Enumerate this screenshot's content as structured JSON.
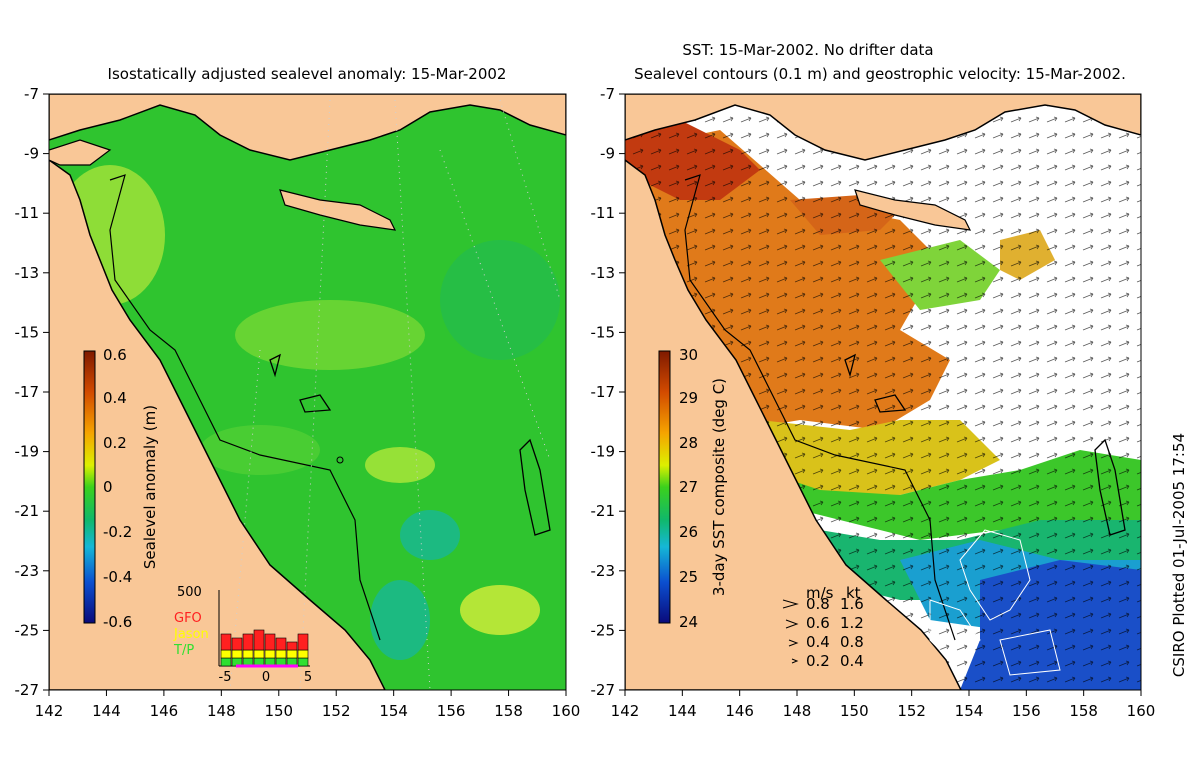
{
  "figure": {
    "credit": "CSIRO Plotted 01-Jul-2005 17:54",
    "colors": {
      "land": "#f9c797",
      "coast": "#000000",
      "background": "#ffffff"
    }
  },
  "left_map": {
    "title": "Isostatically adjusted sealevel anomaly: 15-Mar-2002",
    "colorbar": {
      "label": "Sealevel anomaly (m)",
      "ticks": [
        "0.6",
        "0.4",
        "0.2",
        "0",
        "-0.2",
        "-0.4",
        "-0.6"
      ],
      "range": [
        -0.6,
        0.6
      ]
    },
    "inset": {
      "ymax_label": "500",
      "x_ticks": [
        "-5",
        "0",
        "5"
      ],
      "legend": [
        {
          "label": "GFO",
          "color": "#ff2020"
        },
        {
          "label": "Jason",
          "color": "#ffff00"
        },
        {
          "label": "T/P",
          "color": "#30e030"
        }
      ],
      "bars_gfo": [
        4,
        3,
        4,
        5,
        4,
        3,
        2,
        4
      ],
      "bars_jason": [
        2,
        2,
        2,
        2,
        2,
        2,
        2,
        2
      ],
      "bars_tp": [
        2,
        2,
        2,
        2,
        2,
        2,
        2,
        2
      ]
    }
  },
  "right_map": {
    "title_line1": "SST: 15-Mar-2002. No drifter data",
    "title_line2": "Sealevel contours (0.1 m) and geostrophic velocity: 15-Mar-2002.",
    "colorbar": {
      "label": "3-day SST composite (deg C)",
      "ticks": [
        "30",
        "29",
        "28",
        "27",
        "26",
        "25",
        "24"
      ],
      "range": [
        24,
        30
      ]
    },
    "velocity_legend": {
      "header_ms": "m/s",
      "header_kt": "kt",
      "rows": [
        {
          "ms": "0.8",
          "kt": "1.6"
        },
        {
          "ms": "0.6",
          "kt": "1.2"
        },
        {
          "ms": "0.4",
          "kt": "0.8"
        },
        {
          "ms": "0.2",
          "kt": "0.4"
        }
      ]
    }
  },
  "axes": {
    "x_ticks": [
      "142",
      "144",
      "146",
      "148",
      "150",
      "152",
      "154",
      "156",
      "158",
      "160"
    ],
    "y_ticks": [
      "-7",
      "-9",
      "-11",
      "-13",
      "-15",
      "-17",
      "-19",
      "-21",
      "-23",
      "-25",
      "-27"
    ],
    "xlim": [
      142,
      160
    ],
    "ylim": [
      -27,
      -7
    ]
  }
}
